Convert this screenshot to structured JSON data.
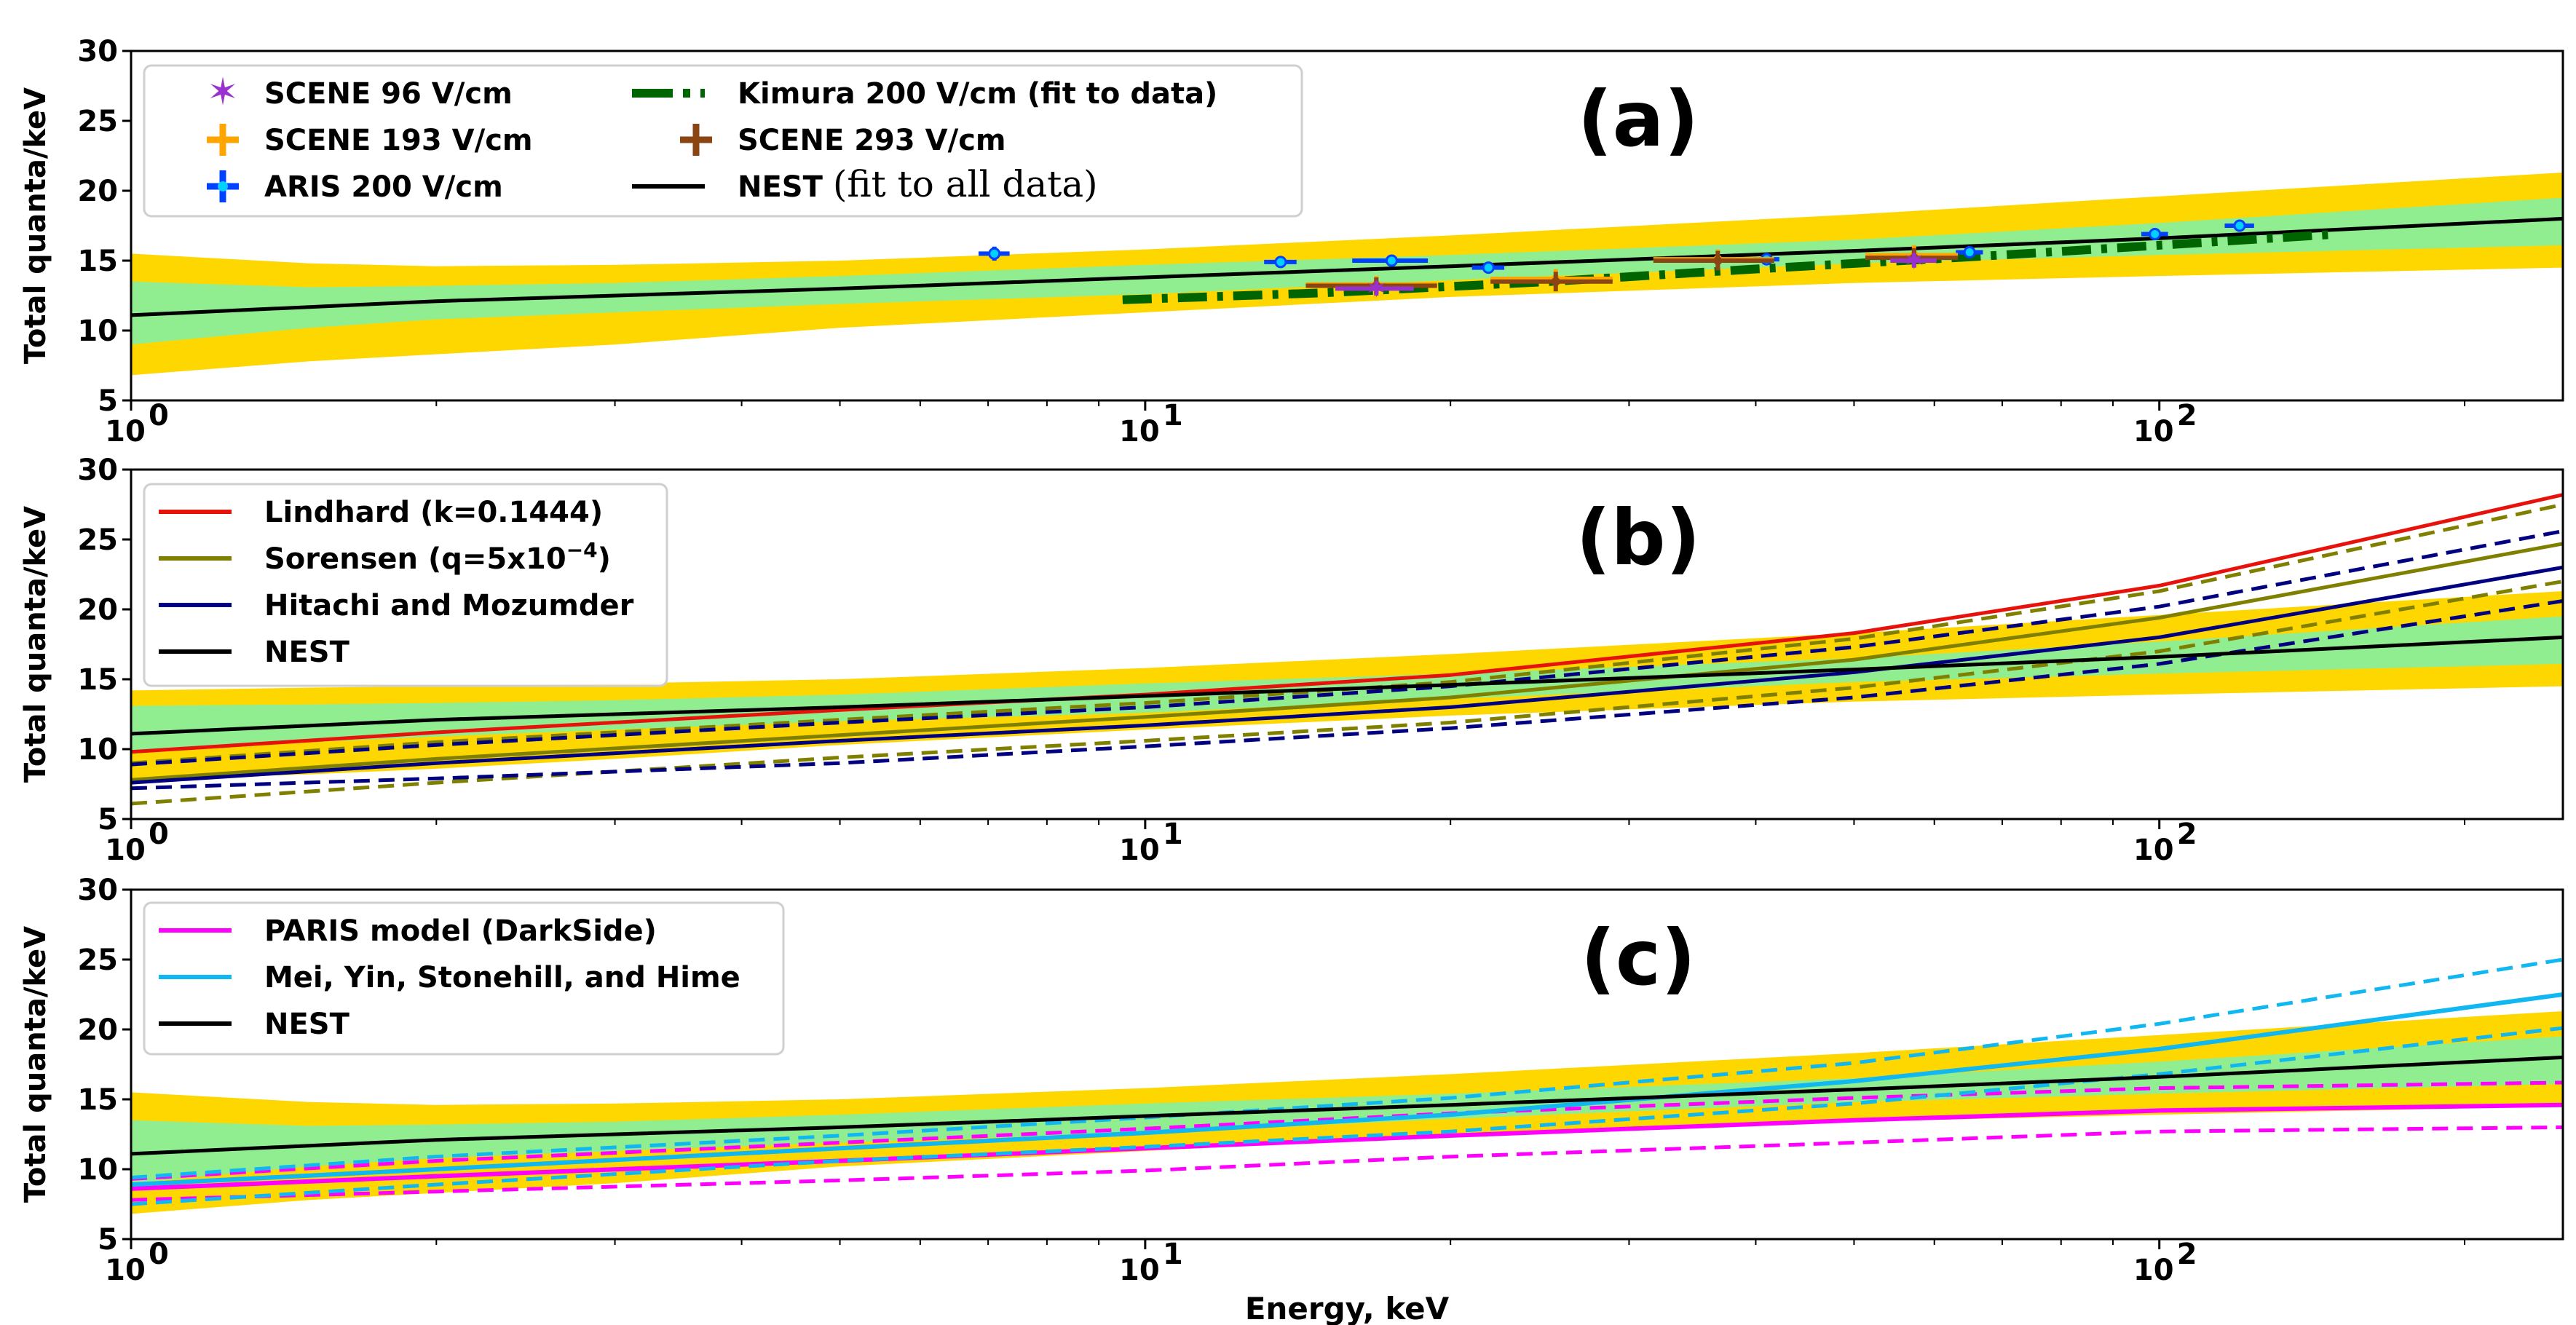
{
  "colors": {
    "yellow_band": "#ffd700",
    "green_band": "#90ee90",
    "nest": "#000000",
    "kimura": "#006400",
    "scene96": "#9932cc",
    "scene193": "#ffa500",
    "scene293": "#8b4513",
    "aris": "#0040ff",
    "lindhard": "#e8120c",
    "sorensen": "#808000",
    "hitachi": "#000080",
    "paris": "#ff00ff",
    "mei": "#10b7f0"
  },
  "chart_data": [
    {
      "panel": "a",
      "type": "line",
      "title": "(a)",
      "xlabel": "",
      "ylabel": "Total quanta/keV",
      "xscale": "log",
      "xlim": [
        1,
        250
      ],
      "ylim": [
        5,
        30
      ],
      "yticks": [
        "5",
        "10",
        "15",
        "20",
        "25",
        "30"
      ],
      "xticks": [
        {
          "base": "10",
          "exp": "0"
        },
        {
          "base": "10",
          "exp": "1"
        },
        {
          "base": "10",
          "exp": "2"
        }
      ],
      "legend": {
        "position": "top-left",
        "entries": [
          {
            "label": "SCENE 96 V/cm",
            "key": "scene96",
            "marker": "star"
          },
          {
            "label": "SCENE 193 V/cm",
            "key": "scene193",
            "marker": "plus"
          },
          {
            "label": "ARIS 200 V/cm",
            "key": "aris",
            "marker": "plus"
          },
          {
            "label": "Kimura 200 V/cm (fit to data)",
            "key": "kimura",
            "marker": "dashdot"
          },
          {
            "label": "SCENE 293 V/cm",
            "key": "scene293",
            "marker": "plus"
          },
          {
            "label_bold": "NEST ",
            "label_serif": "(fit to all data)",
            "key": "nest",
            "marker": "line"
          }
        ]
      },
      "bands": {
        "x": [
          1,
          1.5,
          2,
          3,
          5,
          10,
          20,
          50,
          100,
          250
        ],
        "yellow_low": [
          6.8,
          7.8,
          8.3,
          9.0,
          10.2,
          11.3,
          12.4,
          13.4,
          13.9,
          14.5
        ],
        "yellow_high": [
          15.5,
          14.8,
          14.6,
          14.7,
          15.0,
          15.8,
          16.8,
          18.3,
          19.6,
          21.3
        ],
        "green_low": [
          9.0,
          10.2,
          10.8,
          11.3,
          11.9,
          12.6,
          13.6,
          14.8,
          15.4,
          16.1
        ],
        "green_high": [
          13.5,
          13.1,
          13.2,
          13.4,
          13.9,
          14.7,
          15.4,
          16.5,
          17.7,
          19.5
        ]
      },
      "series": [
        {
          "name": "NEST",
          "key": "nest",
          "style": "solid",
          "width": 5,
          "x": [
            1,
            2,
            5,
            10,
            20,
            50,
            100,
            250
          ],
          "y": [
            11.1,
            12.1,
            13.0,
            13.8,
            14.6,
            15.7,
            16.6,
            18.0
          ]
        },
        {
          "name": "Kimura 200 V/cm (fit to data)",
          "key": "kimura",
          "style": "dashdot",
          "width": 12,
          "x": [
            9.5,
            15,
            25,
            40,
            70,
            100,
            150
          ],
          "y": [
            12.2,
            12.7,
            13.5,
            14.4,
            15.4,
            16.1,
            16.9
          ]
        }
      ],
      "points": [
        {
          "series": "ARIS 200 V/cm",
          "key": "aris",
          "points": [
            {
              "x": 7.1,
              "y": 15.5,
              "xerr": 0.25,
              "yerr": 0.5
            },
            {
              "x": 13.6,
              "y": 14.9,
              "xerr": 0.5,
              "yerr": 0.3
            },
            {
              "x": 17.5,
              "y": 15.0,
              "xerr": 1.5,
              "yerr": 0.4
            },
            {
              "x": 21.8,
              "y": 14.5,
              "xerr": 0.8,
              "yerr": 0.3
            },
            {
              "x": 41,
              "y": 15.1,
              "xerr": 1.2,
              "yerr": 0.3
            },
            {
              "x": 65,
              "y": 15.6,
              "xerr": 2,
              "yerr": 0.3
            },
            {
              "x": 99,
              "y": 16.9,
              "xerr": 3,
              "yerr": 0.4
            },
            {
              "x": 120,
              "y": 17.5,
              "xerr": 4,
              "yerr": 0.4
            }
          ]
        },
        {
          "series": "SCENE 193 V/cm",
          "key": "scene193",
          "points": [
            {
              "x": 16.9,
              "y": 13.3,
              "xerr": 2.5,
              "yerr": 0.6
            },
            {
              "x": 25.4,
              "y": 13.7,
              "xerr": 3.5,
              "yerr": 0.7
            },
            {
              "x": 36.7,
              "y": 15.1,
              "xerr": 5,
              "yerr": 0.7
            },
            {
              "x": 57.3,
              "y": 15.4,
              "xerr": 6,
              "yerr": 0.7
            }
          ]
        },
        {
          "series": "SCENE 293 V/cm",
          "key": "scene293",
          "points": [
            {
              "x": 16.9,
              "y": 13.2,
              "xerr": 2.5,
              "yerr": 0.6
            },
            {
              "x": 25.4,
              "y": 13.5,
              "xerr": 3.5,
              "yerr": 0.7
            },
            {
              "x": 36.7,
              "y": 15.0,
              "xerr": 5,
              "yerr": 0.7
            },
            {
              "x": 57.3,
              "y": 15.2,
              "xerr": 6,
              "yerr": 0.7
            }
          ]
        },
        {
          "series": "SCENE 96 V/cm",
          "key": "scene96",
          "points": [
            {
              "x": 16.9,
              "y": 13.0,
              "xerr": 1.5,
              "yerr": 0.5
            },
            {
              "x": 57.3,
              "y": 15.0,
              "xerr": 3,
              "yerr": 0.5
            }
          ]
        }
      ]
    },
    {
      "panel": "b",
      "type": "line",
      "title": "(b)",
      "xlabel": "",
      "ylabel": "Total quanta/keV",
      "xscale": "log",
      "xlim": [
        1,
        250
      ],
      "ylim": [
        5,
        30
      ],
      "yticks": [
        "5",
        "10",
        "15",
        "20",
        "25",
        "30"
      ],
      "xticks": [
        {
          "base": "10",
          "exp": "0"
        },
        {
          "base": "10",
          "exp": "1"
        },
        {
          "base": "10",
          "exp": "2"
        }
      ],
      "legend": {
        "position": "top-left",
        "entries": [
          {
            "label": "Lindhard (k=0.1444)",
            "key": "lindhard",
            "marker": "line"
          },
          {
            "label": "Sorensen (q=5x10",
            "sup": "−4",
            "label_end": ")",
            "key": "sorensen",
            "marker": "line"
          },
          {
            "label": "Hitachi and Mozumder",
            "key": "hitachi",
            "marker": "line"
          },
          {
            "label": "NEST",
            "key": "nest",
            "marker": "line"
          }
        ]
      },
      "bands": {
        "x": [
          1,
          1.5,
          2,
          3,
          5,
          10,
          20,
          50,
          100,
          250
        ],
        "yellow_low": [
          7.8,
          8.2,
          8.6,
          9.3,
          10.3,
          11.4,
          12.4,
          13.4,
          13.9,
          14.5
        ],
        "yellow_high": [
          14.2,
          14.4,
          14.5,
          14.7,
          15.0,
          15.8,
          16.8,
          18.3,
          19.6,
          21.3
        ],
        "green_low": [
          9.8,
          10.5,
          10.9,
          11.4,
          12.0,
          12.6,
          13.6,
          14.8,
          15.4,
          16.1
        ],
        "green_high": [
          13.1,
          13.2,
          13.3,
          13.5,
          13.9,
          14.7,
          15.4,
          16.5,
          17.7,
          19.5
        ]
      },
      "series": [
        {
          "name": "Lindhard (k=0.1444)",
          "key": "lindhard",
          "style": "solid",
          "width": 5,
          "x": [
            1,
            2,
            5,
            10,
            20,
            50,
            100,
            250
          ],
          "y": [
            9.8,
            11.2,
            12.8,
            13.9,
            15.3,
            18.3,
            21.7,
            28.2
          ]
        },
        {
          "name": "Sorensen",
          "key": "sorensen",
          "style": "solid",
          "width": 5,
          "x": [
            1,
            2,
            5,
            10,
            20,
            50,
            100,
            250
          ],
          "y": [
            7.8,
            9.3,
            11.0,
            12.3,
            13.7,
            16.4,
            19.4,
            24.7
          ]
        },
        {
          "name": "Sorensen upper",
          "key": "sorensen",
          "style": "dashed",
          "width": 5,
          "x": [
            1,
            2,
            5,
            10,
            20,
            50,
            100,
            250
          ],
          "y": [
            9.0,
            10.5,
            12.1,
            13.3,
            14.8,
            17.9,
            21.3,
            27.5
          ]
        },
        {
          "name": "Sorensen lower",
          "key": "sorensen",
          "style": "dashed",
          "width": 5,
          "x": [
            1,
            2,
            5,
            10,
            20,
            50,
            100,
            250
          ],
          "y": [
            6.1,
            7.6,
            9.4,
            10.6,
            11.9,
            14.4,
            17.0,
            22.0
          ]
        },
        {
          "name": "Hitachi and Mozumder",
          "key": "hitachi",
          "style": "solid",
          "width": 5,
          "x": [
            1,
            2,
            5,
            10,
            20,
            50,
            100,
            250
          ],
          "y": [
            7.6,
            9.0,
            10.6,
            11.7,
            13.0,
            15.5,
            18.0,
            23.0
          ]
        },
        {
          "name": "Hitachi upper",
          "key": "hitachi",
          "style": "dashed",
          "width": 5,
          "x": [
            1,
            2,
            5,
            10,
            20,
            50,
            100,
            250
          ],
          "y": [
            8.9,
            10.3,
            11.9,
            13.0,
            14.5,
            17.3,
            20.2,
            25.6
          ]
        },
        {
          "name": "Hitachi lower",
          "key": "hitachi",
          "style": "dashed",
          "width": 5,
          "x": [
            1,
            2,
            5,
            10,
            20,
            50,
            100,
            250
          ],
          "y": [
            7.2,
            7.9,
            9.0,
            10.2,
            11.5,
            13.7,
            16.1,
            20.6
          ]
        },
        {
          "name": "NEST",
          "key": "nest",
          "style": "solid",
          "width": 5,
          "x": [
            1,
            2,
            5,
            10,
            20,
            50,
            100,
            250
          ],
          "y": [
            11.1,
            12.1,
            13.0,
            13.8,
            14.6,
            15.7,
            16.6,
            18.0
          ]
        }
      ]
    },
    {
      "panel": "c",
      "type": "line",
      "title": "(c)",
      "xlabel": "Energy, keV",
      "ylabel": "Total quanta/keV",
      "xscale": "log",
      "xlim": [
        1,
        250
      ],
      "ylim": [
        5,
        30
      ],
      "yticks": [
        "5",
        "10",
        "15",
        "20",
        "25",
        "30"
      ],
      "xticks": [
        {
          "base": "10",
          "exp": "0"
        },
        {
          "base": "10",
          "exp": "1"
        },
        {
          "base": "10",
          "exp": "2"
        }
      ],
      "legend": {
        "position": "top-left",
        "entries": [
          {
            "label": "PARIS model (DarkSide)",
            "key": "paris",
            "marker": "line"
          },
          {
            "label": "Mei, Yin, Stonehill, and Hime",
            "key": "mei",
            "marker": "line"
          },
          {
            "label": "NEST",
            "key": "nest",
            "marker": "line"
          }
        ]
      },
      "bands": {
        "x": [
          1,
          1.5,
          2,
          3,
          5,
          10,
          20,
          50,
          100,
          250
        ],
        "yellow_low": [
          6.8,
          7.8,
          8.3,
          9.0,
          10.2,
          11.3,
          12.4,
          13.4,
          13.9,
          14.5
        ],
        "yellow_high": [
          15.5,
          14.8,
          14.6,
          14.7,
          15.0,
          15.8,
          16.8,
          18.3,
          19.6,
          21.3
        ],
        "green_low": [
          9.0,
          10.2,
          10.8,
          11.3,
          11.9,
          12.6,
          13.6,
          14.8,
          15.4,
          16.1
        ],
        "green_high": [
          13.5,
          13.1,
          13.2,
          13.4,
          13.9,
          14.7,
          15.4,
          16.5,
          17.7,
          19.5
        ]
      },
      "series": [
        {
          "name": "PARIS model (DarkSide)",
          "key": "paris",
          "style": "solid",
          "width": 6,
          "x": [
            1,
            2,
            5,
            10,
            20,
            50,
            100,
            250
          ],
          "y": [
            8.6,
            9.5,
            10.6,
            11.5,
            12.4,
            13.5,
            14.2,
            14.6
          ]
        },
        {
          "name": "PARIS upper",
          "key": "paris",
          "style": "dashed",
          "width": 5,
          "x": [
            1,
            2,
            5,
            10,
            20,
            50,
            100,
            250
          ],
          "y": [
            9.3,
            10.6,
            11.9,
            12.9,
            14.0,
            15.1,
            15.8,
            16.2
          ]
        },
        {
          "name": "PARIS lower",
          "key": "paris",
          "style": "dashed",
          "width": 5,
          "x": [
            1,
            2,
            5,
            10,
            20,
            50,
            100,
            250
          ],
          "y": [
            7.8,
            8.4,
            9.2,
            9.9,
            10.9,
            11.9,
            12.7,
            13.0
          ]
        },
        {
          "name": "Mei, Yin, Stonehill, and Hime",
          "key": "mei",
          "style": "solid",
          "width": 6,
          "x": [
            1,
            2,
            5,
            10,
            20,
            50,
            100,
            250
          ],
          "y": [
            8.9,
            10.0,
            11.5,
            12.6,
            13.9,
            16.3,
            18.6,
            22.5
          ]
        },
        {
          "name": "Mei upper",
          "key": "mei",
          "style": "dashed",
          "width": 5,
          "x": [
            1,
            2,
            5,
            10,
            20,
            50,
            100,
            250
          ],
          "y": [
            9.4,
            10.9,
            12.4,
            13.7,
            15.1,
            17.6,
            20.4,
            25.0
          ]
        },
        {
          "name": "Mei lower",
          "key": "mei",
          "style": "dashed",
          "width": 5,
          "x": [
            1,
            2,
            5,
            10,
            20,
            50,
            100,
            250
          ],
          "y": [
            7.5,
            8.9,
            10.6,
            11.6,
            12.7,
            14.7,
            16.8,
            20.1
          ]
        },
        {
          "name": "NEST",
          "key": "nest",
          "style": "solid",
          "width": 5,
          "x": [
            1,
            2,
            5,
            10,
            20,
            50,
            100,
            250
          ],
          "y": [
            11.1,
            12.1,
            13.0,
            13.8,
            14.6,
            15.7,
            16.6,
            18.0
          ]
        }
      ]
    }
  ]
}
